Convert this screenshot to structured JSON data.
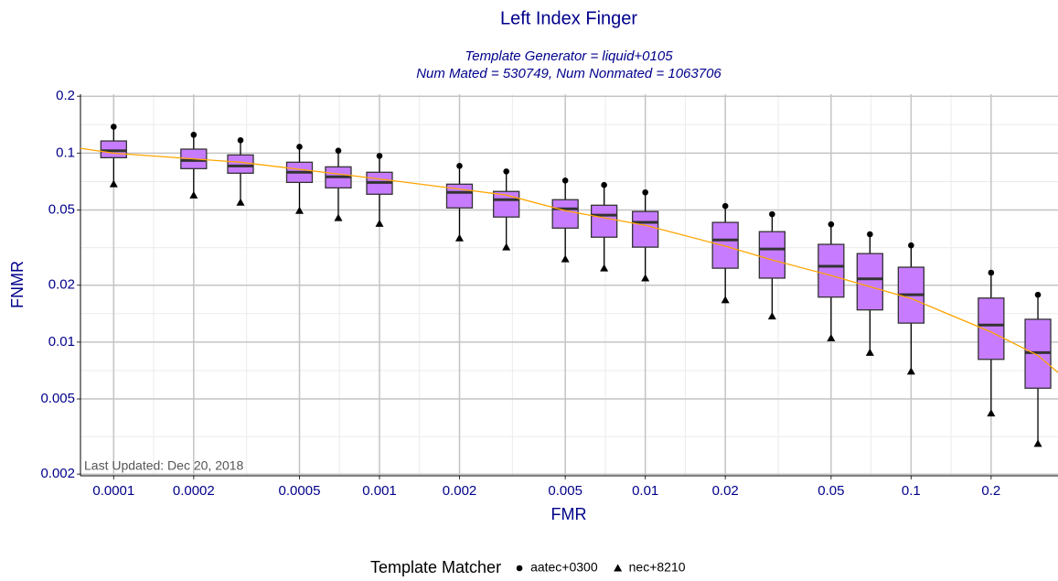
{
  "chart_data": {
    "type": "box",
    "title": "Left Index Finger",
    "subtitle": [
      "Template Generator = liquid+0105",
      "Num Mated = 530749, Num Nonmated = 1063706"
    ],
    "x_label": "FMR",
    "y_label": "FNMR",
    "annotation": "Last Updated: Dec 20, 2018",
    "legend_title": "Template Matcher",
    "legend": "bottom",
    "log_x": true,
    "log_y": true,
    "grid": true,
    "xlim": [
      7.5e-05,
      0.357
    ],
    "ylim": [
      0.00196,
      0.205
    ],
    "xticks": [
      0.0001,
      0.0002,
      0.0005,
      0.001,
      0.002,
      0.005,
      0.01,
      0.02,
      0.05,
      0.1,
      0.2
    ],
    "yticks": [
      0.002,
      0.005,
      0.01,
      0.02,
      0.05,
      0.1,
      0.2
    ],
    "box_color": "#c77cff",
    "x": [
      0.0001,
      0.0002,
      0.0003,
      0.0005,
      0.0007,
      0.001,
      0.002,
      0.003,
      0.005,
      0.007,
      0.01,
      0.02,
      0.03,
      0.05,
      0.07,
      0.1,
      0.2,
      0.3
    ],
    "q1": [
      0.0946,
      0.0828,
      0.0783,
      0.07,
      0.0655,
      0.0606,
      0.0513,
      0.0459,
      0.0401,
      0.0359,
      0.0318,
      0.0246,
      0.0218,
      0.0173,
      0.0148,
      0.0126,
      0.0081,
      0.0057
    ],
    "median": [
      0.103,
      0.0915,
      0.0856,
      0.0792,
      0.0749,
      0.07,
      0.062,
      0.0567,
      0.0507,
      0.047,
      0.043,
      0.0347,
      0.0311,
      0.0252,
      0.0216,
      0.0178,
      0.0123,
      0.0088
    ],
    "q3": [
      0.116,
      0.105,
      0.0978,
      0.0895,
      0.0846,
      0.0792,
      0.0685,
      0.0627,
      0.0567,
      0.053,
      0.0491,
      0.043,
      0.0384,
      0.0329,
      0.0294,
      0.0249,
      0.0171,
      0.0132
    ],
    "series": [
      {
        "name": "aatec+0300",
        "marker": "circle",
        "color": "#000000",
        "values": [
          0.138,
          0.125,
          0.117,
          0.108,
          0.103,
          0.0967,
          0.0856,
          0.08,
          0.0716,
          0.0678,
          0.062,
          0.0525,
          0.0475,
          0.042,
          0.0372,
          0.0325,
          0.0233,
          0.0178
        ]
      },
      {
        "name": "nec+8210",
        "marker": "triangle",
        "color": "#000000",
        "values": [
          0.0686,
          0.0599,
          0.0548,
          0.0496,
          0.0454,
          0.0424,
          0.0355,
          0.0318,
          0.0275,
          0.0246,
          0.0218,
          0.0167,
          0.0137,
          0.0105,
          0.0088,
          0.007,
          0.0042,
          0.0029
        ]
      }
    ],
    "curve": {
      "color": "#ffa500",
      "x": [
        7.5e-05,
        0.0001,
        0.0003,
        0.001,
        0.003,
        0.005,
        0.01,
        0.02,
        0.03,
        0.05,
        0.1,
        0.2,
        0.3,
        0.357
      ],
      "values": [
        0.106,
        0.1,
        0.0895,
        0.073,
        0.06,
        0.0496,
        0.0415,
        0.0322,
        0.0272,
        0.0225,
        0.017,
        0.0113,
        0.0085,
        0.0069
      ]
    }
  }
}
